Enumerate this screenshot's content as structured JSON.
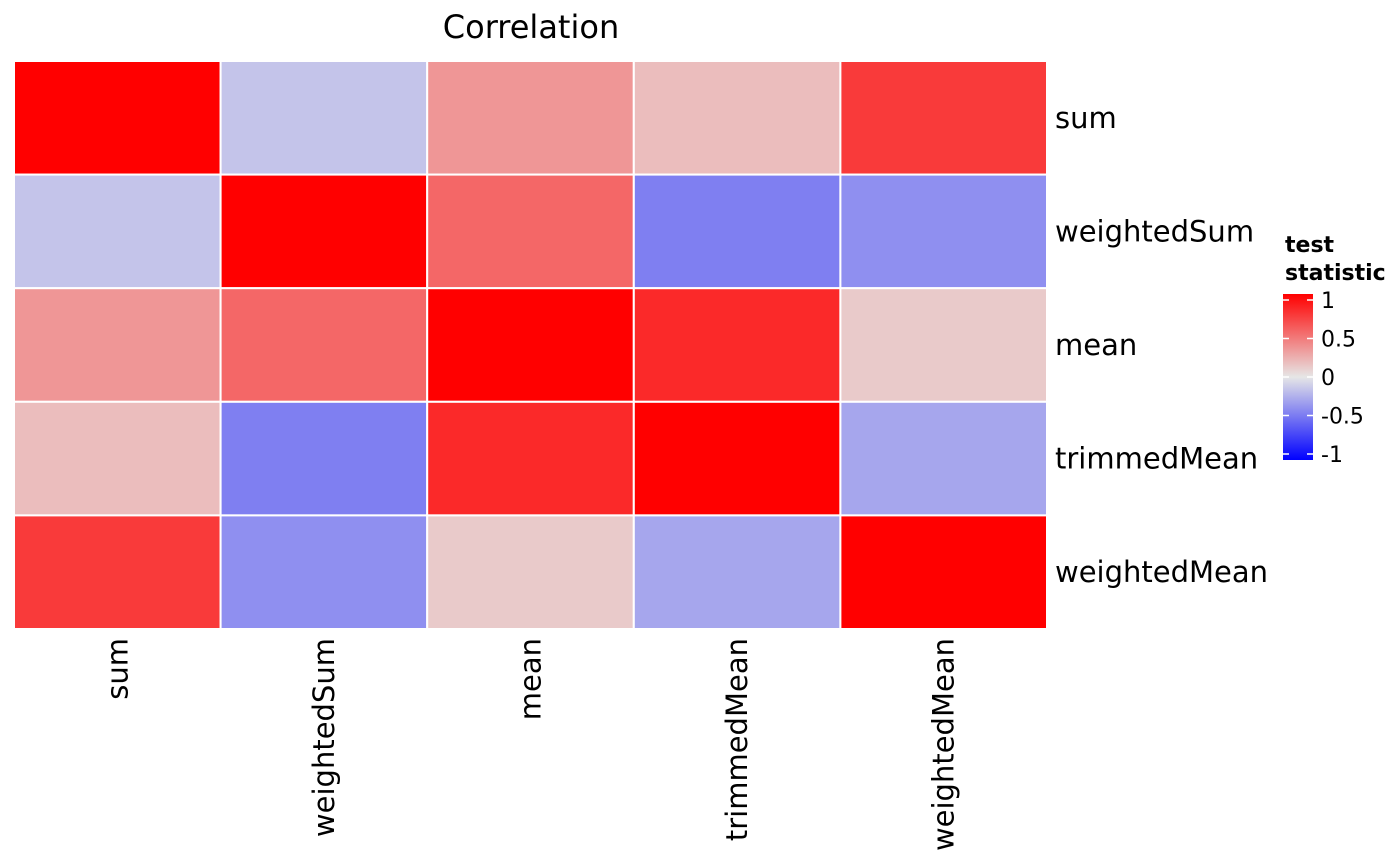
{
  "chart_data": {
    "type": "heatmap",
    "title": "Correlation",
    "rows": [
      "sum",
      "weightedSum",
      "mean",
      "trimmedMean",
      "weightedMean"
    ],
    "columns": [
      "sum",
      "weightedSum",
      "mean",
      "trimmedMean",
      "weightedMean"
    ],
    "values": [
      [
        1.0,
        -0.15,
        0.35,
        0.18,
        0.75
      ],
      [
        -0.15,
        1.0,
        0.55,
        -0.45,
        -0.38
      ],
      [
        0.35,
        0.55,
        1.0,
        0.82,
        0.12
      ],
      [
        0.18,
        -0.45,
        0.82,
        1.0,
        -0.28
      ],
      [
        0.75,
        -0.38,
        0.12,
        -0.28,
        1.0
      ]
    ],
    "colorbar": {
      "title_lines": [
        "test",
        "statistic"
      ],
      "limits": [
        -1,
        1
      ],
      "ticks": [
        1,
        0.5,
        0,
        -0.5,
        -1
      ],
      "tick_labels": [
        "1",
        "0.5",
        "0",
        "-0.5",
        "-1"
      ],
      "low_color": "#0000ff",
      "mid_color": "#e6e6e6",
      "high_color": "#ff0000"
    },
    "legend_position": "right",
    "grid": false
  }
}
